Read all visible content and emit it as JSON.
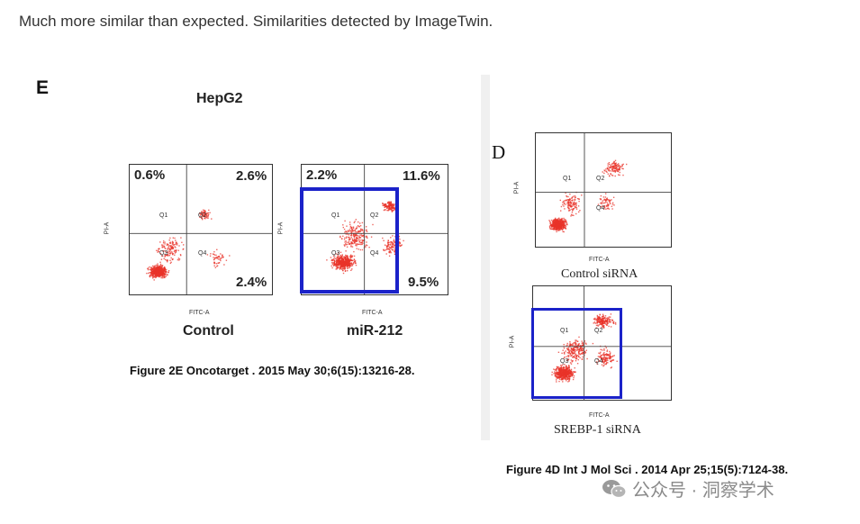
{
  "intro_text": "Much more similar than expected. Similarities detected by ImageTwin.",
  "panel_e": {
    "letter": "E",
    "title": "HepG2",
    "plots": [
      {
        "condition": "Control",
        "q1": "0.6%",
        "q2": "2.6%",
        "q4": "2.4%",
        "highlighted": false
      },
      {
        "condition": "miR-212",
        "q1": "2.2%",
        "q2": "11.6%",
        "q4": "9.5%",
        "highlighted": true
      }
    ],
    "x_axis_label": "FITC-A",
    "y_axis_label": "PI-A",
    "quadrant_labels": [
      "Q1",
      "Q2",
      "Q3",
      "Q4"
    ],
    "caption": "Figure 2E Oncotarget . 2015 May 30;6(15):13216-28."
  },
  "panel_d": {
    "letter": "D",
    "plots": [
      {
        "condition": "Control siRNA",
        "highlighted": false
      },
      {
        "condition": "SREBP-1 siRNA",
        "highlighted": true
      }
    ],
    "x_axis_label": "FITC-A",
    "y_axis_label": "PI-A",
    "caption": "Figure 4D Int J Mol Sci . 2014 Apr 25;15(5):7124-38."
  },
  "highlight_color": "#1b22c9",
  "dot_color": "#e8332a",
  "watermark": {
    "icon": "wechat-icon",
    "text": "公众号 · 洞察学术"
  }
}
